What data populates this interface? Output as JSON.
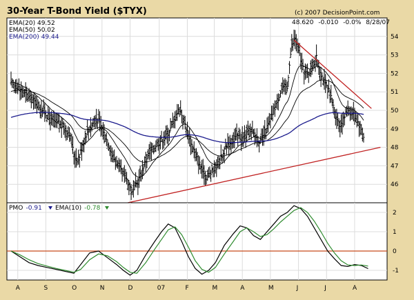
{
  "chart_data": [
    {
      "type": "bar",
      "subtype": "ohlc-price-with-moving-averages",
      "title": "30-Year T-Bond Yield ($TYX)",
      "copyright": "(c) 2007 DecisionPoint.com",
      "quote": {
        "last": "48.620",
        "change": "-0.010",
        "change_pct": "-0.0%",
        "date": "8/28/07"
      },
      "legend": [
        {
          "label": "EMA(20)",
          "value": "49.52",
          "color": "#000000"
        },
        {
          "label": "EMA(50)",
          "value": "50.02",
          "color": "#000000"
        },
        {
          "label": "EMA(200)",
          "value": "49.44",
          "color": "#1a1a8c"
        }
      ],
      "ylim": [
        45,
        55
      ],
      "yticks": [
        "54",
        "53",
        "52",
        "51",
        "50",
        "49",
        "48",
        "47",
        "46"
      ],
      "x_labels": [
        "A",
        "S",
        "O",
        "N",
        "D",
        "07",
        "F",
        "M",
        "A",
        "M",
        "J",
        "J",
        "A"
      ],
      "close_series": [
        [
          0,
          51.4
        ],
        [
          6,
          51.3
        ],
        [
          12,
          50.9
        ],
        [
          18,
          50.6
        ],
        [
          24,
          50.3
        ],
        [
          30,
          49.9
        ],
        [
          36,
          49.4
        ],
        [
          42,
          49.3
        ],
        [
          48,
          49.0
        ],
        [
          52,
          48.8
        ],
        [
          56,
          47.6
        ],
        [
          60,
          47.3
        ],
        [
          64,
          48.2
        ],
        [
          68,
          48.9
        ],
        [
          72,
          49.2
        ],
        [
          75,
          49.6
        ],
        [
          78,
          49.4
        ],
        [
          82,
          48.9
        ],
        [
          86,
          48.3
        ],
        [
          90,
          47.6
        ],
        [
          94,
          47.2
        ],
        [
          98,
          46.7
        ],
        [
          102,
          46.4
        ],
        [
          105,
          46.0
        ],
        [
          108,
          45.5
        ],
        [
          111,
          45.9
        ],
        [
          114,
          46.3
        ],
        [
          118,
          47.0
        ],
        [
          122,
          47.6
        ],
        [
          126,
          47.9
        ],
        [
          130,
          48.2
        ],
        [
          134,
          48.4
        ],
        [
          138,
          48.6
        ],
        [
          142,
          49.0
        ],
        [
          146,
          49.6
        ],
        [
          150,
          50.1
        ],
        [
          154,
          49.5
        ],
        [
          158,
          48.6
        ],
        [
          162,
          48.0
        ],
        [
          166,
          47.4
        ],
        [
          170,
          46.8
        ],
        [
          174,
          46.4
        ],
        [
          178,
          46.6
        ],
        [
          182,
          46.9
        ],
        [
          186,
          47.3
        ],
        [
          190,
          47.8
        ],
        [
          194,
          48.2
        ],
        [
          198,
          48.4
        ],
        [
          202,
          48.6
        ],
        [
          206,
          48.5
        ],
        [
          210,
          48.7
        ],
        [
          214,
          48.8
        ],
        [
          218,
          48.6
        ],
        [
          222,
          48.3
        ],
        [
          226,
          48.8
        ],
        [
          230,
          49.3
        ],
        [
          234,
          50.0
        ],
        [
          238,
          50.7
        ],
        [
          242,
          51.3
        ],
        [
          246,
          51.2
        ],
        [
          248,
          52.6
        ],
        [
          250,
          53.5
        ],
        [
          253,
          53.9
        ],
        [
          256,
          53.3
        ],
        [
          260,
          52.2
        ],
        [
          264,
          51.9
        ],
        [
          268,
          52.4
        ],
        [
          272,
          52.8
        ],
        [
          276,
          52.0
        ],
        [
          280,
          51.4
        ],
        [
          284,
          50.9
        ],
        [
          288,
          50.0
        ],
        [
          292,
          49.2
        ],
        [
          296,
          49.5
        ],
        [
          300,
          50.1
        ],
        [
          304,
          49.9
        ],
        [
          308,
          49.5
        ],
        [
          312,
          49.0
        ],
        [
          314,
          48.6
        ]
      ],
      "trendlines": [
        {
          "name": "support",
          "from": [
            104,
            45.0
          ],
          "to": [
            329,
            48.0
          ],
          "color": "#c02020"
        },
        {
          "name": "resistance",
          "from": [
            252,
            53.8
          ],
          "to": [
            321,
            50.1
          ],
          "color": "#c02020"
        }
      ]
    },
    {
      "type": "line",
      "title": "PMO",
      "legend": [
        {
          "label": "PMO",
          "value": "-0.91",
          "arrow": "down",
          "color": "#1a1a8c"
        },
        {
          "label": "EMA(10)",
          "value": "-0.78",
          "arrow": "down",
          "color": "#2e8b2e"
        }
      ],
      "ylim": [
        -1.5,
        2.5
      ],
      "yticks": [
        "2",
        "1",
        "0",
        "-1"
      ],
      "zero_line_color": "#c84a1a",
      "series": [
        {
          "name": "PMO",
          "color": "#000000",
          "values": [
            [
              0,
              0.0
            ],
            [
              8,
              -0.3
            ],
            [
              16,
              -0.6
            ],
            [
              24,
              -0.75
            ],
            [
              32,
              -0.85
            ],
            [
              40,
              -0.95
            ],
            [
              48,
              -1.05
            ],
            [
              56,
              -1.15
            ],
            [
              62,
              -0.7
            ],
            [
              70,
              -0.1
            ],
            [
              78,
              0.0
            ],
            [
              86,
              -0.35
            ],
            [
              94,
              -0.7
            ],
            [
              100,
              -1.0
            ],
            [
              106,
              -1.25
            ],
            [
              112,
              -1.0
            ],
            [
              120,
              -0.2
            ],
            [
              128,
              0.5
            ],
            [
              134,
              1.0
            ],
            [
              140,
              1.4
            ],
            [
              146,
              1.2
            ],
            [
              152,
              0.5
            ],
            [
              158,
              -0.3
            ],
            [
              164,
              -0.9
            ],
            [
              170,
              -1.2
            ],
            [
              176,
              -1.0
            ],
            [
              182,
              -0.6
            ],
            [
              190,
              0.3
            ],
            [
              198,
              0.9
            ],
            [
              204,
              1.3
            ],
            [
              210,
              1.2
            ],
            [
              216,
              0.8
            ],
            [
              222,
              0.6
            ],
            [
              228,
              1.0
            ],
            [
              234,
              1.4
            ],
            [
              240,
              1.8
            ],
            [
              246,
              2.0
            ],
            [
              252,
              2.35
            ],
            [
              258,
              2.2
            ],
            [
              264,
              1.8
            ],
            [
              270,
              1.2
            ],
            [
              276,
              0.6
            ],
            [
              282,
              0.0
            ],
            [
              288,
              -0.4
            ],
            [
              294,
              -0.75
            ],
            [
              300,
              -0.8
            ],
            [
              306,
              -0.7
            ],
            [
              312,
              -0.75
            ],
            [
              318,
              -0.91
            ]
          ]
        },
        {
          "name": "EMA(10)",
          "color": "#2e8b2e",
          "values": [
            [
              0,
              0.0
            ],
            [
              8,
              -0.2
            ],
            [
              16,
              -0.45
            ],
            [
              24,
              -0.65
            ],
            [
              32,
              -0.78
            ],
            [
              40,
              -0.9
            ],
            [
              48,
              -1.0
            ],
            [
              56,
              -1.1
            ],
            [
              62,
              -0.95
            ],
            [
              70,
              -0.45
            ],
            [
              78,
              -0.15
            ],
            [
              86,
              -0.25
            ],
            [
              94,
              -0.55
            ],
            [
              100,
              -0.85
            ],
            [
              106,
              -1.1
            ],
            [
              112,
              -1.15
            ],
            [
              120,
              -0.6
            ],
            [
              128,
              0.1
            ],
            [
              134,
              0.6
            ],
            [
              140,
              1.1
            ],
            [
              146,
              1.25
            ],
            [
              152,
              0.85
            ],
            [
              158,
              0.2
            ],
            [
              164,
              -0.5
            ],
            [
              170,
              -0.95
            ],
            [
              176,
              -1.1
            ],
            [
              182,
              -0.85
            ],
            [
              190,
              -0.15
            ],
            [
              198,
              0.5
            ],
            [
              204,
              1.0
            ],
            [
              210,
              1.2
            ],
            [
              216,
              1.0
            ],
            [
              222,
              0.75
            ],
            [
              228,
              0.85
            ],
            [
              234,
              1.15
            ],
            [
              240,
              1.5
            ],
            [
              246,
              1.8
            ],
            [
              252,
              2.1
            ],
            [
              258,
              2.25
            ],
            [
              264,
              2.0
            ],
            [
              270,
              1.55
            ],
            [
              276,
              1.0
            ],
            [
              282,
              0.4
            ],
            [
              288,
              -0.1
            ],
            [
              294,
              -0.5
            ],
            [
              300,
              -0.72
            ],
            [
              306,
              -0.75
            ],
            [
              312,
              -0.72
            ],
            [
              318,
              -0.78
            ]
          ]
        }
      ]
    }
  ],
  "colors": {
    "frame": "#ead9a6",
    "panel_bg": "#ffffff",
    "grid": "#dcdcdc",
    "price": "#000000",
    "ema20": "#000000",
    "ema50": "#000000",
    "ema200": "#1a1a8c",
    "trendline": "#c02020"
  },
  "icons": {
    "down_arrow_pmo": "triangle-down-icon",
    "down_arrow_ema": "triangle-down-icon"
  }
}
